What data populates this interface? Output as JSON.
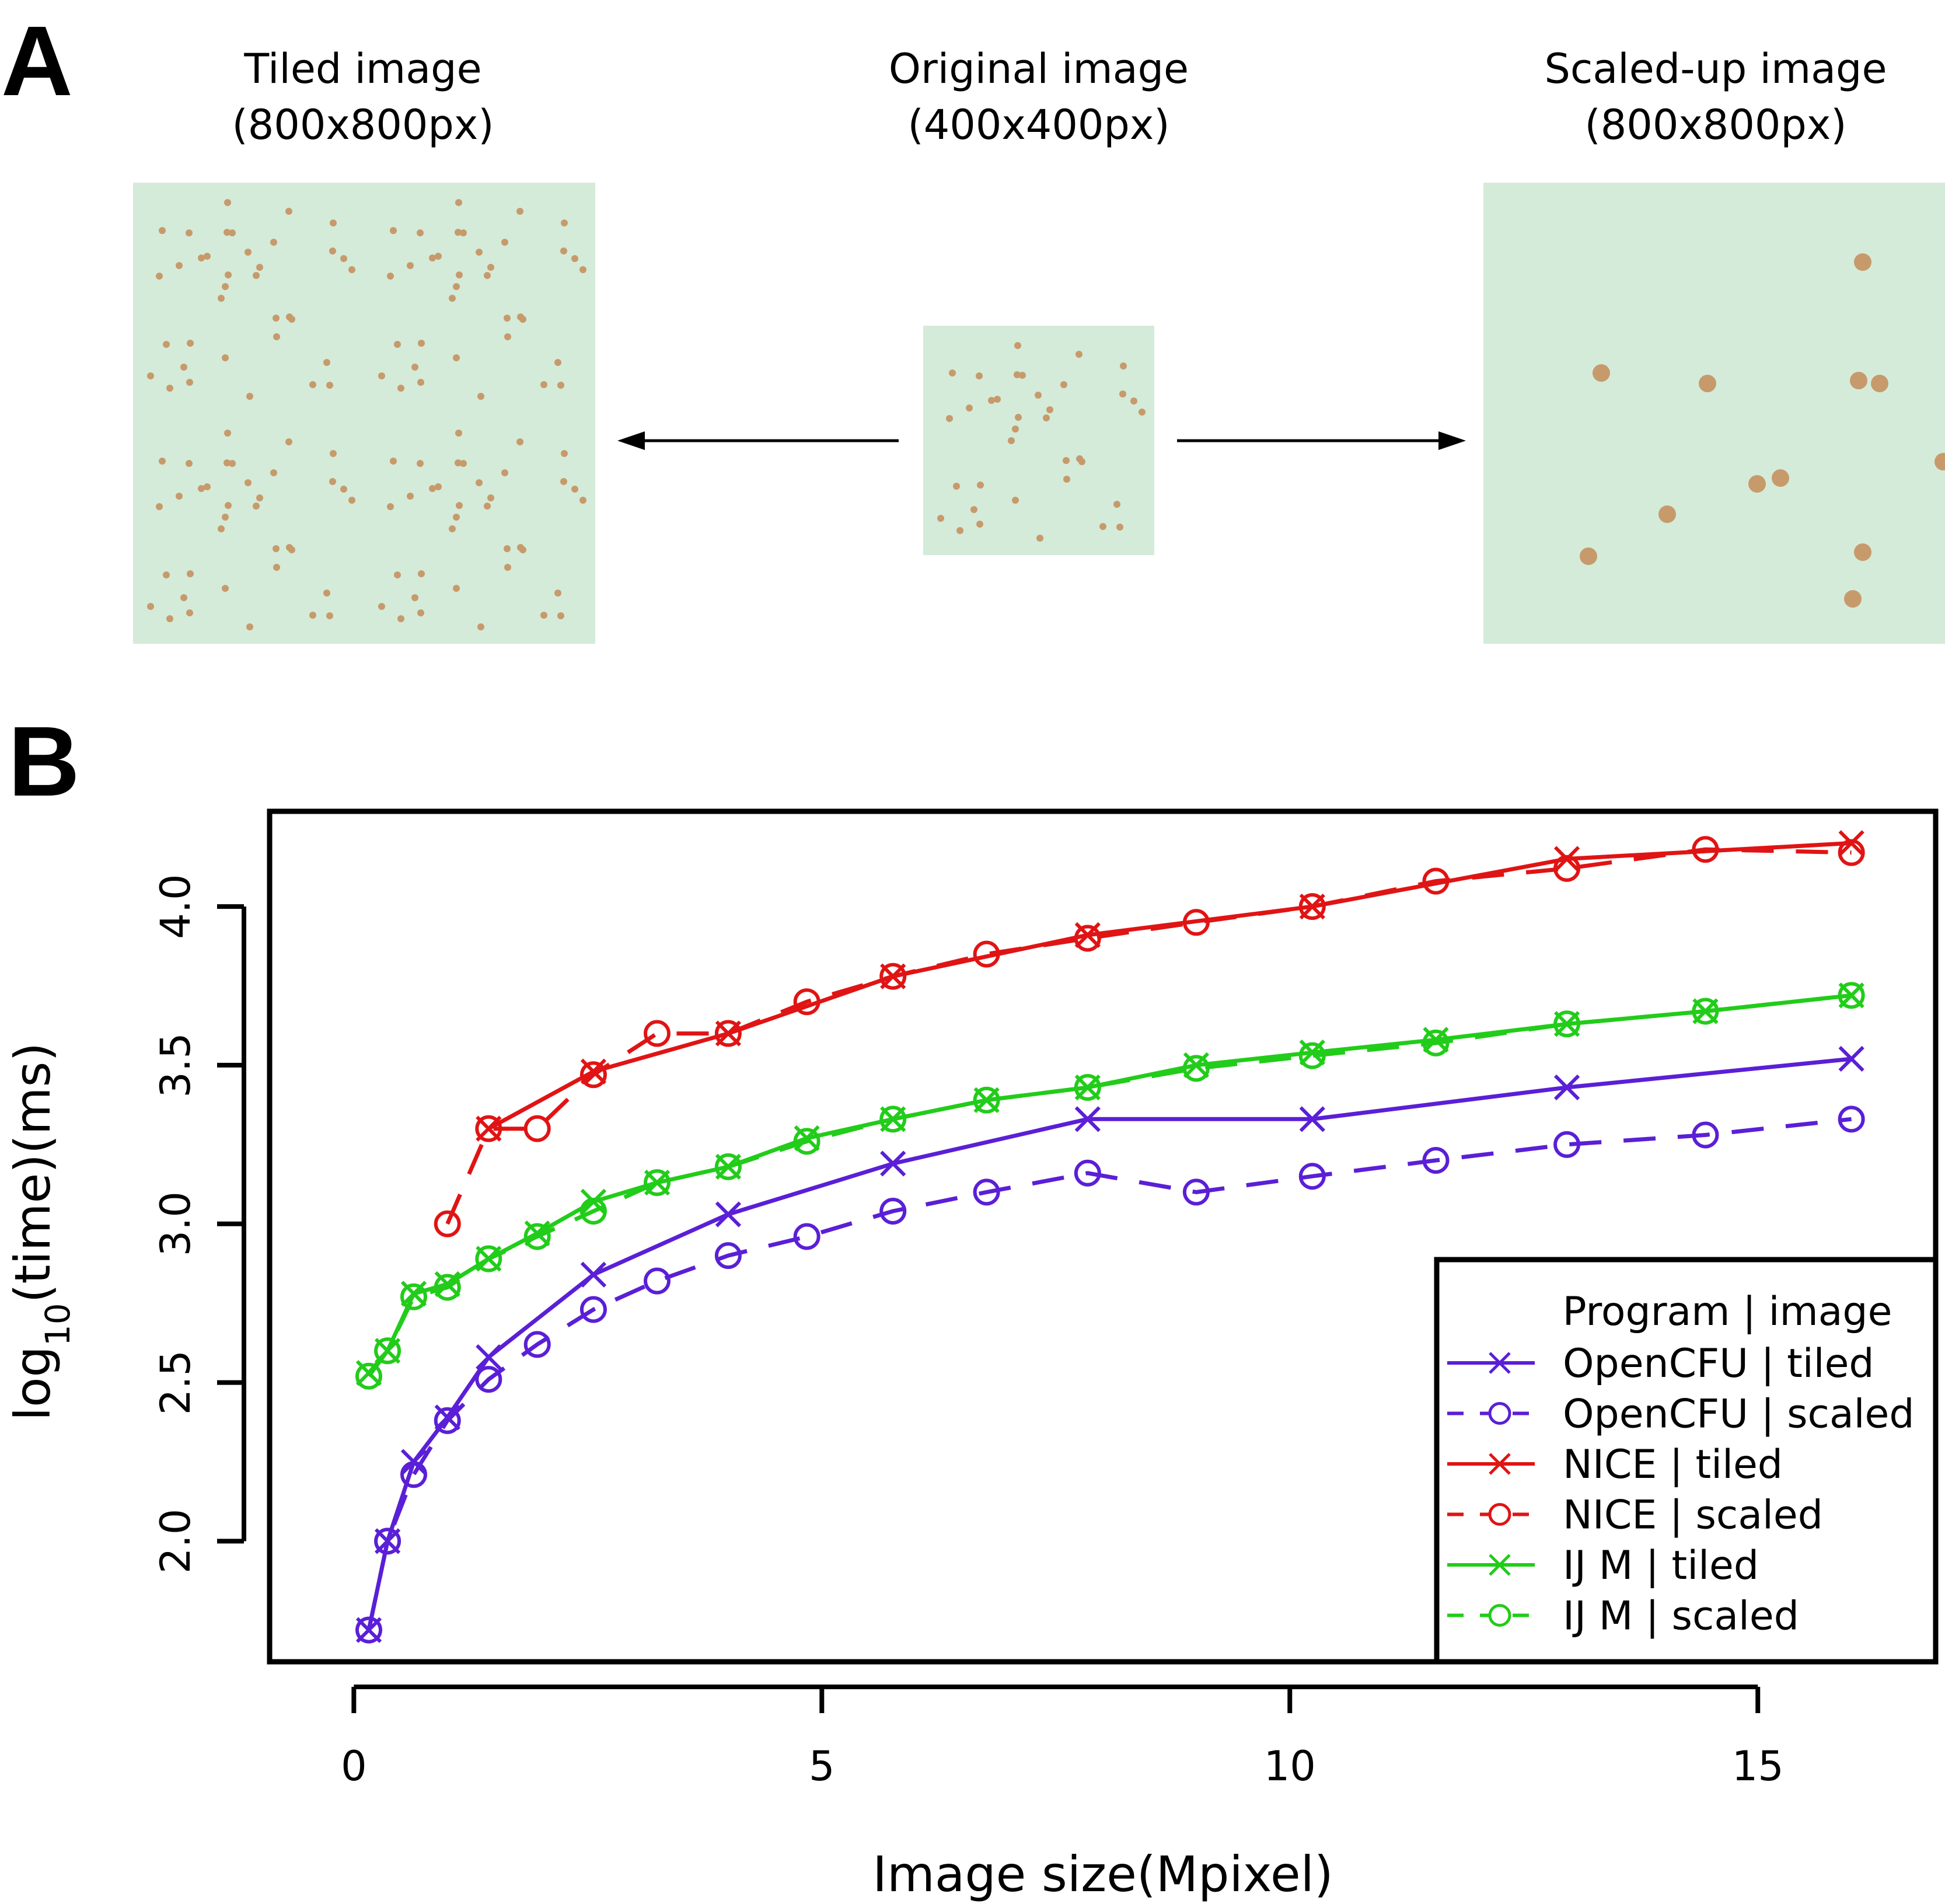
{
  "panel_a": {
    "letter": "A",
    "tiled": {
      "title": "Tiled image",
      "size": "(800x800px)"
    },
    "original": {
      "title": "Original image",
      "size": "(400x400px)"
    },
    "scaled": {
      "title": "Scaled-up image",
      "size": "(800x800px)"
    }
  },
  "panel_b": {
    "letter": "B"
  },
  "chart_data": {
    "type": "line",
    "xlabel": "Image size(Mpixel)",
    "ylabel_base": "log",
    "ylabel_sub": "10",
    "ylabel_rest": "(time)(ms)",
    "xlim": [
      -0.9,
      16.9
    ],
    "ylim": [
      1.62,
      4.3
    ],
    "x_ticks": [
      0,
      5,
      10,
      15
    ],
    "x_tick_labels": [
      "0",
      "5",
      "10",
      "15"
    ],
    "y_ticks": [
      2.0,
      2.5,
      3.0,
      3.5,
      4.0
    ],
    "y_tick_labels": [
      "2.0",
      "2.5",
      "3.0",
      "3.5",
      "4.0"
    ],
    "legend": {
      "title": "Program | image",
      "position": "bottom-right"
    },
    "series": [
      {
        "name": "OpenCFU | tiled",
        "color": "#5a1fd6",
        "line": "solid",
        "marker": "x",
        "x": [
          0.16,
          0.36,
          0.64,
          1.0,
          1.44,
          2.56,
          4.0,
          5.76,
          7.84,
          10.24,
          12.96,
          16.0
        ],
        "y": [
          1.72,
          2.0,
          2.25,
          2.39,
          2.58,
          2.84,
          3.03,
          3.19,
          3.33,
          3.33,
          3.43,
          3.52
        ]
      },
      {
        "name": "OpenCFU | scaled",
        "color": "#5a1fd6",
        "line": "dashed",
        "marker": "o",
        "x": [
          0.16,
          0.36,
          0.64,
          1.0,
          1.44,
          1.96,
          2.56,
          3.24,
          4.0,
          4.84,
          5.76,
          6.76,
          7.84,
          9.0,
          10.24,
          11.56,
          12.96,
          14.44,
          16.0
        ],
        "y": [
          1.72,
          2.0,
          2.21,
          2.38,
          2.51,
          2.62,
          2.73,
          2.82,
          2.9,
          2.96,
          3.04,
          3.1,
          3.16,
          3.1,
          3.15,
          3.2,
          3.25,
          3.28,
          3.33
        ]
      },
      {
        "name": "NICE | tiled",
        "color": "#e01414",
        "line": "solid",
        "marker": "x",
        "x": [
          1.44,
          2.56,
          4.0,
          5.76,
          7.84,
          10.24,
          12.96,
          16.0
        ],
        "y": [
          3.3,
          3.48,
          3.6,
          3.78,
          3.91,
          4.0,
          4.15,
          4.2
        ]
      },
      {
        "name": "NICE | scaled",
        "color": "#e01414",
        "line": "dashed",
        "marker": "o",
        "x": [
          1.0,
          1.44,
          1.96,
          2.56,
          3.24,
          4.0,
          4.84,
          5.76,
          6.76,
          7.84,
          9.0,
          10.24,
          11.56,
          12.96,
          14.44,
          16.0
        ],
        "y": [
          3.0,
          3.3,
          3.3,
          3.47,
          3.6,
          3.6,
          3.7,
          3.78,
          3.85,
          3.9,
          3.95,
          4.0,
          4.08,
          4.12,
          4.18,
          4.17
        ]
      },
      {
        "name": "IJ M | tiled",
        "color": "#22cc1a",
        "line": "solid",
        "marker": "x",
        "x": [
          0.16,
          0.36,
          0.64,
          1.0,
          1.44,
          1.96,
          2.56,
          3.24,
          4.0,
          4.84,
          5.76,
          6.76,
          7.84,
          9.0,
          10.24,
          11.56,
          12.96,
          14.44,
          16.0
        ],
        "y": [
          2.53,
          2.6,
          2.78,
          2.81,
          2.89,
          2.97,
          3.07,
          3.13,
          3.18,
          3.27,
          3.33,
          3.39,
          3.43,
          3.5,
          3.54,
          3.58,
          3.63,
          3.67,
          3.72
        ]
      },
      {
        "name": "IJ M | scaled",
        "color": "#22cc1a",
        "line": "dashed",
        "marker": "o",
        "x": [
          0.16,
          0.36,
          0.64,
          1.0,
          1.44,
          1.96,
          2.56,
          3.24,
          4.0,
          4.84,
          5.76,
          6.76,
          7.84,
          9.0,
          10.24,
          11.56,
          12.96,
          14.44,
          16.0
        ],
        "y": [
          2.52,
          2.6,
          2.77,
          2.8,
          2.89,
          2.96,
          3.04,
          3.13,
          3.18,
          3.26,
          3.33,
          3.39,
          3.43,
          3.49,
          3.53,
          3.57,
          3.63,
          3.67,
          3.72
        ]
      }
    ]
  }
}
